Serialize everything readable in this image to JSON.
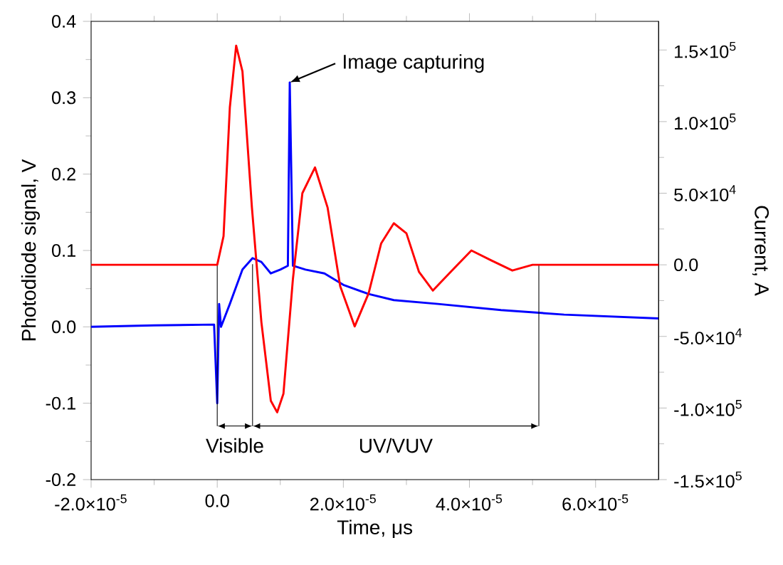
{
  "chart_data": {
    "type": "line",
    "xlabel": "Time, μs",
    "ylabel": "Photodiode signal, V",
    "y2label": "Current, A",
    "xlim": [
      -2e-05,
      7e-05
    ],
    "ylim": [
      -0.2,
      0.4
    ],
    "y2lim": [
      -150000.0,
      170000.0
    ],
    "xticks": [
      {
        "value": -2e-05,
        "label": "-2.0×10$^{-5}$"
      },
      {
        "value": 0,
        "label": "0.0"
      },
      {
        "value": 2e-05,
        "label": "2.0×10$^{-5}$"
      },
      {
        "value": 4e-05,
        "label": "4.0×10$^{-5}$"
      },
      {
        "value": 6e-05,
        "label": "6.0×10$^{-5}$"
      }
    ],
    "yticks": [
      {
        "value": -0.2,
        "label": "-0.2"
      },
      {
        "value": -0.1,
        "label": "-0.1"
      },
      {
        "value": 0,
        "label": "0.0"
      },
      {
        "value": 0.1,
        "label": "0.1"
      },
      {
        "value": 0.2,
        "label": "0.2"
      },
      {
        "value": 0.3,
        "label": "0.3"
      },
      {
        "value": 0.4,
        "label": "0.4"
      }
    ],
    "y2ticks": [
      {
        "value": -150000.0,
        "label": "-1.5×10$^{5}$"
      },
      {
        "value": -100000.0,
        "label": "-1.0×10$^{5}$"
      },
      {
        "value": -50000.0,
        "label": "-5.0×10$^{4}$"
      },
      {
        "value": 0,
        "label": "0.0"
      },
      {
        "value": 50000.0,
        "label": "5.0×10$^{4}$"
      },
      {
        "value": 100000.0,
        "label": "1.0×10$^{5}$"
      },
      {
        "value": 150000.0,
        "label": "1.5×10$^{5}$"
      }
    ],
    "series": [
      {
        "color": "#ff0000",
        "axis": "y2",
        "x": [
          -2e-05,
          -1e-05,
          0,
          1e-06,
          2e-06,
          3e-06,
          4e-06,
          5.5e-06,
          7e-06,
          8.5e-06,
          9.5e-06,
          1.05e-05,
          1.2e-05,
          1.35e-05,
          1.55e-05,
          1.75e-05,
          1.95e-05,
          2.18e-05,
          2.4e-05,
          2.6e-05,
          2.8e-05,
          3e-05,
          3.2e-05,
          3.42e-05,
          3.7e-05,
          4.03e-05,
          4.35e-05,
          4.68e-05,
          5e-05,
          6e-05,
          7e-05
        ],
        "values": [
          0,
          0,
          0,
          20000,
          110000,
          153000,
          135000,
          40000,
          -40000,
          -95000,
          -103000,
          -90000,
          -10000,
          50000,
          68000,
          40000,
          -15000,
          -43000,
          -20000,
          15000,
          29000,
          22000,
          -5000,
          -18000,
          -5000,
          10000,
          3000,
          -4000,
          0,
          0,
          0
        ]
      },
      {
        "color": "#0000ff",
        "axis": "y",
        "x": [
          -2e-05,
          -1e-05,
          -5e-07,
          0,
          3e-07,
          6e-07,
          2e-06,
          4e-06,
          5.6e-06,
          7e-06,
          8.5e-06,
          1e-05,
          1.12e-05,
          1.15e-05,
          1.2e-05,
          1.4e-05,
          1.7e-05,
          2e-05,
          2.4e-05,
          2.8e-05,
          3.5e-05,
          4.5e-05,
          5.5e-05,
          7e-05
        ],
        "values": [
          0,
          0.002,
          0.003,
          -0.1,
          0.03,
          0.0,
          0.03,
          0.075,
          0.09,
          0.085,
          0.07,
          0.075,
          0.08,
          0.32,
          0.08,
          0.075,
          0.07,
          0.055,
          0.043,
          0.035,
          0.03,
          0.022,
          0.016,
          0.011
        ]
      }
    ],
    "annotations": [
      {
        "text": "Image capturing",
        "x": 1.15e-05,
        "y": 0.32
      },
      "Visible",
      "UV/VUV"
    ],
    "ref_lines": [
      {
        "axis": "x",
        "value": 0
      },
      {
        "axis": "x",
        "value": 5.6e-06
      },
      {
        "axis": "x",
        "value": 5.1e-05
      }
    ]
  }
}
